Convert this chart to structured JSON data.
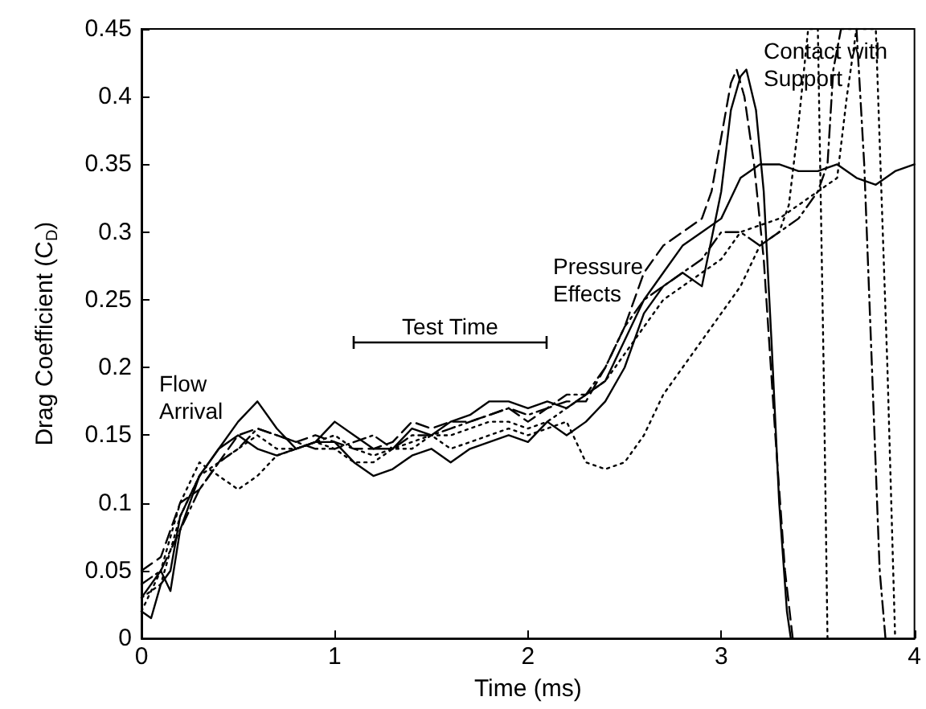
{
  "chart_data": {
    "type": "line",
    "xlabel": "Time (ms)",
    "ylabel": "Drag Coefficient (C$_{D}$)",
    "xlim": [
      0,
      4
    ],
    "xticks": [
      0,
      1,
      2,
      3,
      4
    ],
    "ylim": [
      0,
      0.45
    ],
    "yticks": [
      0,
      0.05,
      0.1,
      0.15,
      0.2,
      0.25,
      0.3,
      0.35,
      0.4,
      0.45
    ],
    "grid": false,
    "marker": "none",
    "series": [
      {
        "color": "#000000",
        "line_style": "solid",
        "x": [
          0,
          0.05,
          0.1,
          0.15,
          0.2,
          0.3,
          0.4,
          0.5,
          0.6,
          0.7,
          0.8,
          0.9,
          1.0,
          1.1,
          1.2,
          1.3,
          1.4,
          1.5,
          1.6,
          1.7,
          1.8,
          1.9,
          2.0,
          2.1,
          2.2,
          2.3,
          2.4,
          2.5,
          2.6,
          2.7,
          2.8,
          2.9,
          3.0,
          3.05,
          3.1,
          3.13,
          3.18,
          3.22,
          3.26,
          3.3,
          3.34,
          3.36
        ],
        "values": [
          0.02,
          0.015,
          0.04,
          0.05,
          0.09,
          0.12,
          0.14,
          0.15,
          0.14,
          0.135,
          0.14,
          0.145,
          0.145,
          0.13,
          0.12,
          0.125,
          0.135,
          0.14,
          0.13,
          0.14,
          0.145,
          0.15,
          0.145,
          0.16,
          0.15,
          0.16,
          0.175,
          0.2,
          0.24,
          0.26,
          0.27,
          0.26,
          0.33,
          0.39,
          0.415,
          0.42,
          0.39,
          0.33,
          0.22,
          0.1,
          0.02,
          0
        ]
      },
      {
        "color": "#000000",
        "line_style": "solid",
        "x": [
          0,
          0.1,
          0.15,
          0.2,
          0.3,
          0.4,
          0.5,
          0.6,
          0.7,
          0.8,
          0.9,
          1.0,
          1.1,
          1.2,
          1.3,
          1.4,
          1.5,
          1.6,
          1.7,
          1.8,
          1.9,
          2.0,
          2.1,
          2.2,
          2.3,
          2.4,
          2.5,
          2.6,
          2.7,
          2.8,
          2.9,
          3.0,
          3.1,
          3.2,
          3.3,
          3.4,
          3.5,
          3.6,
          3.7,
          3.8,
          3.9,
          4.0
        ],
        "values": [
          0.03,
          0.05,
          0.035,
          0.08,
          0.12,
          0.14,
          0.16,
          0.175,
          0.155,
          0.14,
          0.145,
          0.16,
          0.15,
          0.14,
          0.14,
          0.155,
          0.15,
          0.16,
          0.165,
          0.175,
          0.175,
          0.17,
          0.175,
          0.17,
          0.18,
          0.19,
          0.22,
          0.25,
          0.27,
          0.29,
          0.3,
          0.31,
          0.34,
          0.35,
          0.35,
          0.345,
          0.345,
          0.35,
          0.34,
          0.335,
          0.345,
          0.35
        ]
      },
      {
        "color": "#000000",
        "line_style": "dashed",
        "x": [
          0,
          0.1,
          0.2,
          0.3,
          0.4,
          0.5,
          0.6,
          0.7,
          0.8,
          0.9,
          1.0,
          1.1,
          1.2,
          1.3,
          1.4,
          1.5,
          1.6,
          1.7,
          1.8,
          1.9,
          2.0,
          2.1,
          2.2,
          2.3,
          2.4,
          2.5,
          2.6,
          2.7,
          2.8,
          2.9,
          2.95,
          3.0,
          3.05,
          3.08,
          3.12,
          3.17,
          3.22,
          3.28,
          3.33,
          3.37
        ],
        "values": [
          0.05,
          0.06,
          0.1,
          0.11,
          0.13,
          0.15,
          0.155,
          0.15,
          0.145,
          0.15,
          0.145,
          0.14,
          0.14,
          0.145,
          0.16,
          0.155,
          0.16,
          0.16,
          0.165,
          0.17,
          0.16,
          0.17,
          0.175,
          0.175,
          0.2,
          0.23,
          0.27,
          0.29,
          0.3,
          0.31,
          0.33,
          0.37,
          0.41,
          0.42,
          0.4,
          0.35,
          0.28,
          0.15,
          0.05,
          0
        ]
      },
      {
        "color": "#000000",
        "line_style": "dashdot",
        "x": [
          0,
          0.1,
          0.2,
          0.3,
          0.4,
          0.5,
          0.6,
          0.7,
          0.8,
          0.9,
          1.0,
          1.1,
          1.2,
          1.3,
          1.4,
          1.5,
          1.6,
          1.7,
          1.8,
          1.9,
          2.0,
          2.1,
          2.2,
          2.3,
          2.4,
          2.5,
          2.6,
          2.7,
          2.8,
          2.9,
          3.0,
          3.1,
          3.2,
          3.3,
          3.4,
          3.5,
          3.55,
          3.58,
          3.62,
          3.7,
          3.74,
          3.78,
          3.82,
          3.85
        ],
        "values": [
          0.04,
          0.05,
          0.08,
          0.11,
          0.13,
          0.14,
          0.155,
          0.15,
          0.145,
          0.14,
          0.14,
          0.145,
          0.15,
          0.14,
          0.15,
          0.15,
          0.155,
          0.16,
          0.165,
          0.17,
          0.165,
          0.17,
          0.18,
          0.18,
          0.2,
          0.23,
          0.25,
          0.26,
          0.27,
          0.28,
          0.3,
          0.3,
          0.29,
          0.3,
          0.31,
          0.33,
          0.35,
          0.42,
          0.45,
          0.45,
          0.35,
          0.2,
          0.05,
          0
        ]
      },
      {
        "color": "#000000",
        "line_style": "dotted",
        "x": [
          0,
          0.1,
          0.2,
          0.3,
          0.4,
          0.5,
          0.6,
          0.7,
          0.8,
          0.9,
          1.0,
          1.1,
          1.2,
          1.3,
          1.4,
          1.5,
          1.6,
          1.7,
          1.8,
          1.9,
          2.0,
          2.1,
          2.2,
          2.25,
          2.3,
          2.4,
          2.5,
          2.6,
          2.7,
          2.8,
          2.9,
          3.0,
          3.1,
          3.2,
          3.3,
          3.35,
          3.4,
          3.45,
          3.5,
          3.53,
          3.55
        ],
        "values": [
          0.02,
          0.05,
          0.1,
          0.13,
          0.12,
          0.11,
          0.12,
          0.135,
          0.14,
          0.145,
          0.14,
          0.13,
          0.13,
          0.14,
          0.14,
          0.15,
          0.14,
          0.145,
          0.15,
          0.155,
          0.15,
          0.155,
          0.16,
          0.145,
          0.13,
          0.125,
          0.13,
          0.15,
          0.18,
          0.2,
          0.22,
          0.24,
          0.26,
          0.29,
          0.3,
          0.32,
          0.38,
          0.45,
          0.45,
          0.2,
          0
        ]
      },
      {
        "color": "#000000",
        "line_style": "dotted",
        "x": [
          0,
          0.1,
          0.2,
          0.3,
          0.4,
          0.5,
          0.6,
          0.7,
          0.8,
          0.9,
          1.0,
          1.1,
          1.2,
          1.3,
          1.4,
          1.5,
          1.6,
          1.7,
          1.8,
          1.9,
          2.0,
          2.1,
          2.2,
          2.3,
          2.4,
          2.5,
          2.6,
          2.7,
          2.8,
          2.9,
          3.0,
          3.1,
          3.2,
          3.3,
          3.4,
          3.5,
          3.6,
          3.65,
          3.7,
          3.8,
          3.86,
          3.9
        ],
        "values": [
          0.03,
          0.04,
          0.09,
          0.12,
          0.13,
          0.14,
          0.15,
          0.14,
          0.14,
          0.145,
          0.15,
          0.14,
          0.135,
          0.14,
          0.145,
          0.15,
          0.15,
          0.155,
          0.16,
          0.16,
          0.155,
          0.16,
          0.17,
          0.18,
          0.19,
          0.21,
          0.23,
          0.25,
          0.26,
          0.27,
          0.28,
          0.3,
          0.305,
          0.31,
          0.32,
          0.33,
          0.34,
          0.4,
          0.45,
          0.45,
          0.2,
          0
        ]
      }
    ],
    "annotations": [
      "Test Time",
      "Flow\nArrival",
      "Pressure\nEffects",
      "Contact with\nSupport"
    ]
  }
}
